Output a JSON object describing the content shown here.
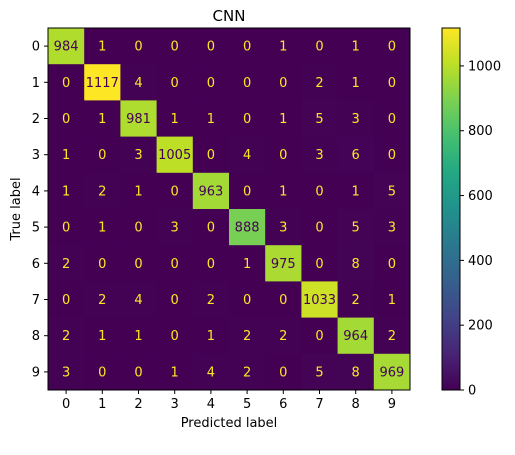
{
  "chart_data": {
    "type": "heatmap",
    "title": "CNN",
    "xlabel": "Predicted label",
    "ylabel": "True label",
    "x_categories": [
      "0",
      "1",
      "2",
      "3",
      "4",
      "5",
      "6",
      "7",
      "8",
      "9"
    ],
    "y_categories": [
      "0",
      "1",
      "2",
      "3",
      "4",
      "5",
      "6",
      "7",
      "8",
      "9"
    ],
    "matrix": [
      [
        984,
        1,
        0,
        0,
        0,
        0,
        1,
        0,
        1,
        0
      ],
      [
        0,
        1117,
        4,
        0,
        0,
        0,
        0,
        2,
        1,
        0
      ],
      [
        0,
        1,
        981,
        1,
        1,
        0,
        1,
        5,
        3,
        0
      ],
      [
        1,
        0,
        3,
        1005,
        0,
        4,
        0,
        3,
        6,
        0
      ],
      [
        1,
        2,
        1,
        0,
        963,
        0,
        1,
        0,
        1,
        5
      ],
      [
        0,
        1,
        0,
        3,
        0,
        888,
        3,
        0,
        5,
        3
      ],
      [
        2,
        0,
        0,
        0,
        0,
        1,
        975,
        0,
        8,
        0
      ],
      [
        0,
        2,
        4,
        0,
        2,
        0,
        0,
        1033,
        2,
        1
      ],
      [
        2,
        1,
        1,
        0,
        1,
        2,
        2,
        0,
        964,
        2
      ],
      [
        3,
        0,
        0,
        1,
        4,
        2,
        0,
        5,
        8,
        969
      ]
    ],
    "colormap": "viridis",
    "color_range": [
      0,
      1117
    ],
    "colorbar_ticks": [
      "0",
      "200",
      "400",
      "600",
      "800",
      "1000"
    ],
    "colorbar_tick_values": [
      0,
      200,
      400,
      600,
      800,
      1000
    ],
    "text_colors": {
      "on_dark": "#fde725",
      "on_light": "#440154"
    },
    "grid": false
  }
}
